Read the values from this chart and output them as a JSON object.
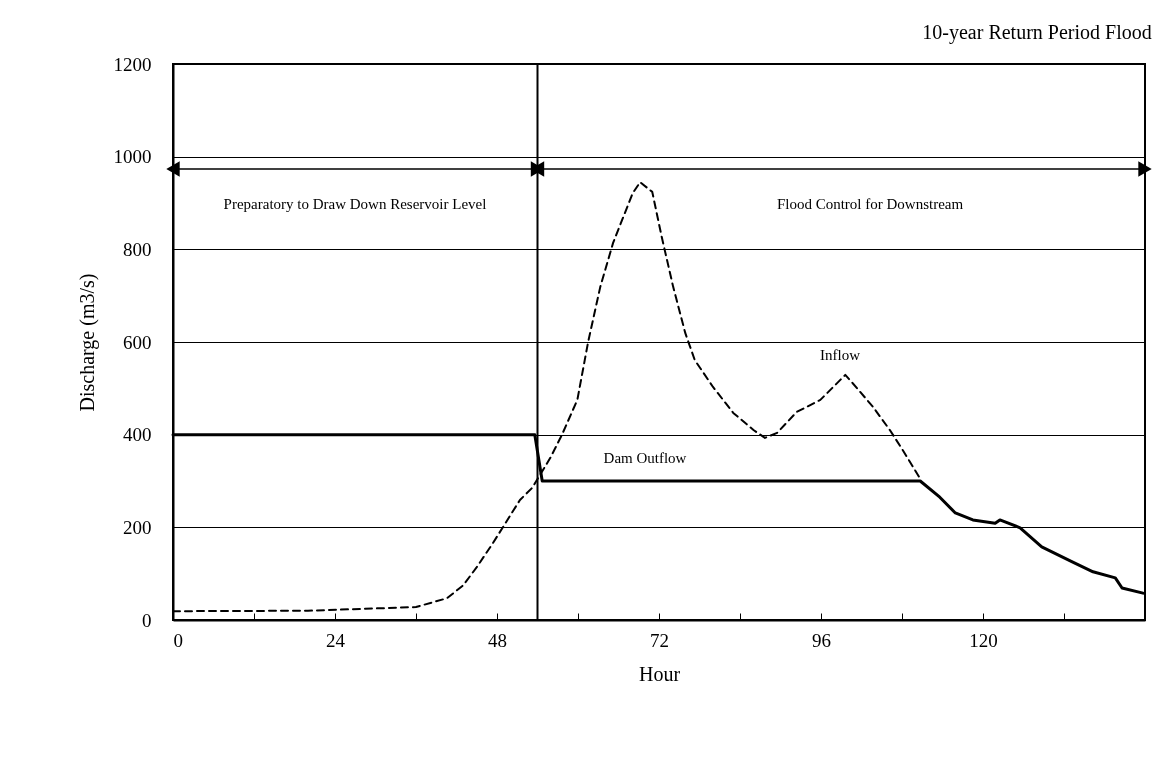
{
  "chart_data": {
    "type": "line",
    "title": "10-year Return Period Flood",
    "xlabel": "Hour",
    "ylabel": "Discharge (m3/s)",
    "xlim": [
      0,
      144
    ],
    "xticks": [
      0,
      {
        "value": 12,
        "label": null
      },
      24,
      {
        "value": 36,
        "label": null
      },
      48,
      {
        "value": 60,
        "label": null
      },
      72,
      {
        "value": 84,
        "label": null
      },
      96,
      {
        "value": 108,
        "label": null
      },
      120,
      {
        "value": 132,
        "label": null
      },
      {
        "value": 144,
        "label": null
      }
    ],
    "ylim": [
      0,
      1200
    ],
    "yticks": [
      0,
      200,
      400,
      600,
      800,
      1000,
      1200
    ],
    "grid": "y",
    "marker": "none",
    "series": [
      {
        "color": "#000000",
        "line_style": "dashed",
        "x": [
          0,
          20,
          36,
          40.6,
          43,
          45,
          47.4,
          51.4,
          53.2,
          55.9,
          57.6,
          59.9,
          61.5,
          63.3,
          65.2,
          68.1,
          69.2,
          71,
          72.4,
          74.1,
          75.9,
          77.3,
          80,
          83,
          86,
          87.7,
          89.5,
          92.4,
          95.9,
          99.6,
          100.7,
          103.7,
          106.2,
          108.1,
          110.7
        ],
        "values": [
          19,
          20,
          28,
          47,
          75,
          114,
          166,
          259,
          285,
          350,
          399,
          475,
          600,
          719,
          814,
          921,
          945,
          924,
          827,
          719,
          619,
          561,
          503,
          447,
          410,
          393,
          404,
          449,
          475,
          529,
          511,
          460,
          410,
          367,
          305
        ]
      },
      {
        "color": "#000000",
        "line_style": "solid",
        "x": [
          0,
          53.6,
          54.7,
          110.7,
          113.6,
          115.9,
          118.5,
          121.8,
          122.5,
          125.5,
          128.7,
          133.3,
          136.3,
          139.6,
          140.6,
          143.7
        ],
        "values": [
          400,
          400,
          300,
          300,
          265,
          231,
          216,
          209,
          216,
          199,
          158,
          125,
          104,
          91,
          69,
          58
        ]
      }
    ],
    "ref_lines": [
      {
        "axis": "x",
        "value": 54
      }
    ],
    "annotations": [
      "Preparatory to Draw Down Reservoir Level",
      "Flood Control for Downstream",
      "Inflow",
      "Dam Outflow"
    ]
  }
}
